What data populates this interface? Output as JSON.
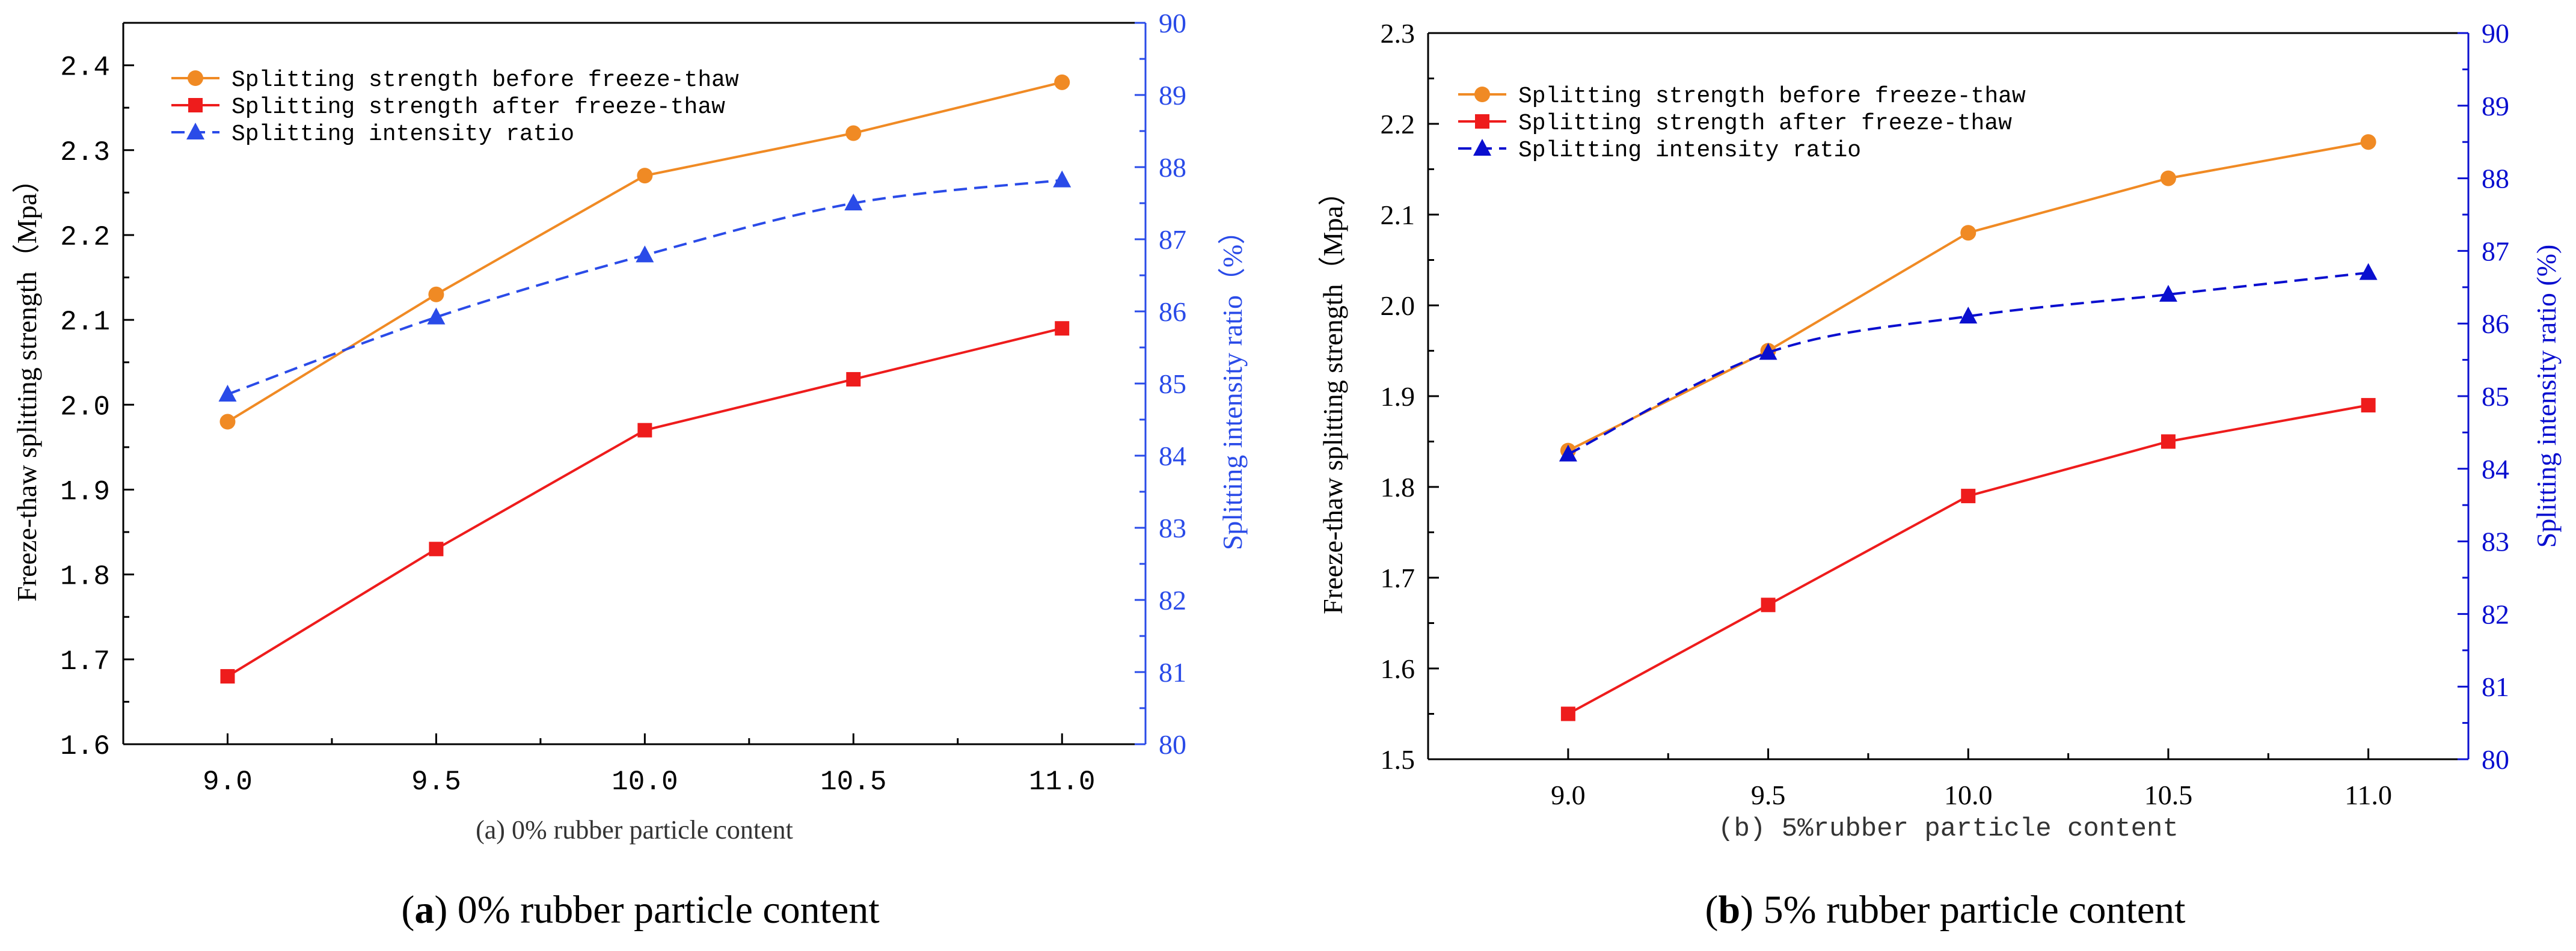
{
  "chart_data": [
    {
      "type": "line",
      "panel": "a",
      "subtitle": "(a) 0% rubber particle content",
      "caption_letter": "a",
      "caption_rest": ") 0% rubber particle content",
      "caption_paren": "(",
      "x": [
        9.0,
        9.5,
        10.0,
        10.5,
        11.0
      ],
      "xticks": [
        "9.0",
        "9.5",
        "10.0",
        "10.5",
        "11.0"
      ],
      "ylabel": "Freeze-thaw splitting strength（Mpa）",
      "y2label": "Splitting intensity ratio（%）",
      "ylim": [
        1.6,
        2.45
      ],
      "yticks": [
        "1.6",
        "1.7",
        "1.8",
        "1.9",
        "2.0",
        "2.1",
        "2.2",
        "2.3",
        "2.4"
      ],
      "y2lim": [
        80,
        90
      ],
      "y2ticks": [
        "80",
        "81",
        "82",
        "83",
        "84",
        "85",
        "86",
        "87",
        "88",
        "89",
        "90"
      ],
      "series": [
        {
          "name": "Splitting strength before freeze-thaw",
          "axis": "left",
          "color": "#F08A24",
          "marker": "circle",
          "dash": false,
          "values": [
            1.98,
            2.13,
            2.27,
            2.32,
            2.38
          ]
        },
        {
          "name": "Splitting strength after freeze-thaw",
          "axis": "left",
          "color": "#EE1C1C",
          "marker": "square",
          "dash": false,
          "values": [
            1.68,
            1.83,
            1.97,
            2.03,
            2.09
          ]
        },
        {
          "name": "Splitting intensity ratio",
          "axis": "right",
          "color": "#2A4BE8",
          "marker": "triangle",
          "dash": true,
          "values": [
            84.85,
            85.92,
            86.78,
            87.5,
            87.82
          ]
        }
      ]
    },
    {
      "type": "line",
      "panel": "b",
      "subtitle": "(b) 5%rubber particle content",
      "caption_letter": "b",
      "caption_rest": ") 5% rubber particle content",
      "caption_paren": "(",
      "x": [
        9.0,
        9.5,
        10.0,
        10.5,
        11.0
      ],
      "xticks": [
        "9.0",
        "9.5",
        "10.0",
        "10.5",
        "11.0"
      ],
      "ylabel": "Freeze-thaw splitting strength（Mpa）",
      "y2label": "Splitting intensity ratio (%)",
      "ylim": [
        1.5,
        2.3
      ],
      "yticks": [
        "1.5",
        "1.6",
        "1.7",
        "1.8",
        "1.9",
        "2.0",
        "2.1",
        "2.2",
        "2.3"
      ],
      "y2lim": [
        80,
        90
      ],
      "y2ticks": [
        "80",
        "81",
        "82",
        "83",
        "84",
        "85",
        "86",
        "87",
        "88",
        "89",
        "90"
      ],
      "series": [
        {
          "name": "Splitting strength before freeze-thaw",
          "axis": "left",
          "color": "#F08A24",
          "marker": "circle",
          "dash": false,
          "values": [
            1.84,
            1.95,
            2.08,
            2.14,
            2.18
          ]
        },
        {
          "name": "Splitting strength after freeze-thaw",
          "axis": "left",
          "color": "#EE1C1C",
          "marker": "square",
          "dash": false,
          "values": [
            1.55,
            1.67,
            1.79,
            1.85,
            1.89
          ]
        },
        {
          "name": "Splitting intensity ratio",
          "axis": "right",
          "color": "#0A0FCF",
          "marker": "triangle",
          "dash": true,
          "values": [
            84.2,
            85.6,
            86.1,
            86.4,
            86.7
          ]
        }
      ]
    }
  ]
}
